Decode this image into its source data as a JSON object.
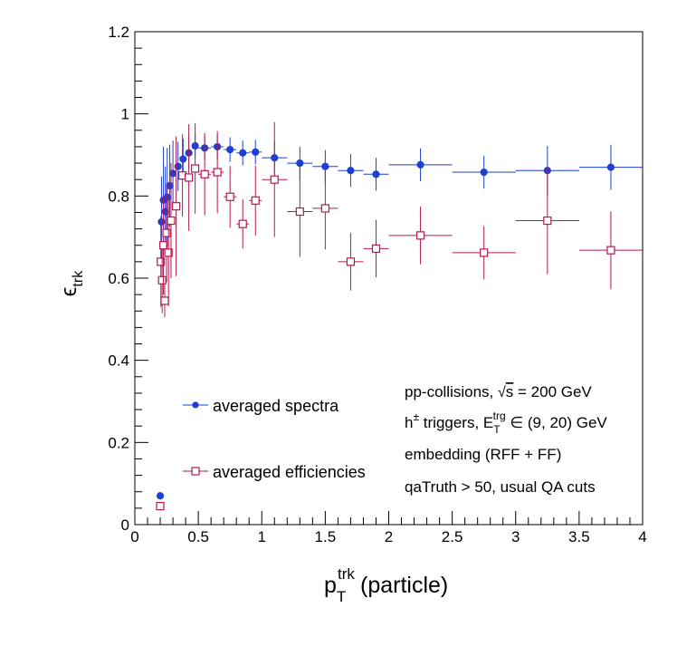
{
  "chart_data": {
    "type": "scatter",
    "xlabel": {
      "main": "p",
      "sub": "T",
      "sup": "trk",
      "rest": "(particle)"
    },
    "ylabel": {
      "main": "ϵ",
      "sub": "trk"
    },
    "xlim": [
      0,
      4
    ],
    "ylim": [
      0,
      1.2
    ],
    "x_ticks": [
      "0",
      "0.5",
      "1",
      "1.5",
      "2",
      "2.5",
      "3",
      "3.5",
      "4"
    ],
    "y_ticks": [
      "0",
      "0.2",
      "0.4",
      "0.6",
      "0.8",
      "1",
      "1.2"
    ],
    "grid": false,
    "legend_position": "left-lower",
    "colors": {
      "spectra": "#1e3fd0",
      "efficiencies": "#b3194f"
    },
    "series": [
      {
        "name": "averaged spectra",
        "marker": "filled-circle",
        "points": [
          {
            "x": 0.2,
            "y": 0.07,
            "xerr": 0.0,
            "yerr": 0.0
          },
          {
            "x": 0.21,
            "y": 0.737,
            "xerr": 0.005,
            "yerr": 0.11
          },
          {
            "x": 0.225,
            "y": 0.79,
            "xerr": 0.005,
            "yerr": 0.13
          },
          {
            "x": 0.24,
            "y": 0.762,
            "xerr": 0.005,
            "yerr": 0.11
          },
          {
            "x": 0.255,
            "y": 0.797,
            "xerr": 0.005,
            "yerr": 0.12
          },
          {
            "x": 0.275,
            "y": 0.825,
            "xerr": 0.01,
            "yerr": 0.1
          },
          {
            "x": 0.3,
            "y": 0.855,
            "xerr": 0.01,
            "yerr": 0.08
          },
          {
            "x": 0.34,
            "y": 0.872,
            "xerr": 0.02,
            "yerr": 0.06
          },
          {
            "x": 0.38,
            "y": 0.89,
            "xerr": 0.02,
            "yerr": 0.05
          },
          {
            "x": 0.425,
            "y": 0.905,
            "xerr": 0.025,
            "yerr": 0.04
          },
          {
            "x": 0.475,
            "y": 0.922,
            "xerr": 0.025,
            "yerr": 0.03
          },
          {
            "x": 0.55,
            "y": 0.917,
            "xerr": 0.05,
            "yerr": 0.03
          },
          {
            "x": 0.65,
            "y": 0.92,
            "xerr": 0.05,
            "yerr": 0.03
          },
          {
            "x": 0.75,
            "y": 0.913,
            "xerr": 0.05,
            "yerr": 0.03
          },
          {
            "x": 0.85,
            "y": 0.905,
            "xerr": 0.05,
            "yerr": 0.03
          },
          {
            "x": 0.95,
            "y": 0.907,
            "xerr": 0.05,
            "yerr": 0.03
          },
          {
            "x": 1.1,
            "y": 0.893,
            "xerr": 0.1,
            "yerr": 0.04
          },
          {
            "x": 1.3,
            "y": 0.88,
            "xerr": 0.1,
            "yerr": 0.04
          },
          {
            "x": 1.5,
            "y": 0.872,
            "xerr": 0.1,
            "yerr": 0.04
          },
          {
            "x": 1.7,
            "y": 0.862,
            "xerr": 0.1,
            "yerr": 0.04
          },
          {
            "x": 1.9,
            "y": 0.853,
            "xerr": 0.1,
            "yerr": 0.04
          },
          {
            "x": 2.25,
            "y": 0.876,
            "xerr": 0.25,
            "yerr": 0.04
          },
          {
            "x": 2.75,
            "y": 0.858,
            "xerr": 0.25,
            "yerr": 0.04
          },
          {
            "x": 3.25,
            "y": 0.862,
            "xerr": 0.25,
            "yerr": 0.06
          },
          {
            "x": 3.75,
            "y": 0.87,
            "xerr": 0.25,
            "yerr": 0.055
          }
        ]
      },
      {
        "name": "averaged efficiencies",
        "marker": "open-square",
        "points": [
          {
            "x": 0.2,
            "y": 0.045,
            "xerr": 0.0,
            "yerr": 0.0
          },
          {
            "x": 0.205,
            "y": 0.64,
            "xerr": 0.005,
            "yerr": 0.11
          },
          {
            "x": 0.215,
            "y": 0.595,
            "xerr": 0.005,
            "yerr": 0.08
          },
          {
            "x": 0.225,
            "y": 0.68,
            "xerr": 0.005,
            "yerr": 0.12
          },
          {
            "x": 0.235,
            "y": 0.545,
            "xerr": 0.005,
            "yerr": 0.04
          },
          {
            "x": 0.25,
            "y": 0.71,
            "xerr": 0.005,
            "yerr": 0.12
          },
          {
            "x": 0.265,
            "y": 0.662,
            "xerr": 0.005,
            "yerr": 0.13
          },
          {
            "x": 0.285,
            "y": 0.74,
            "xerr": 0.01,
            "yerr": 0.14
          },
          {
            "x": 0.325,
            "y": 0.775,
            "xerr": 0.02,
            "yerr": 0.17
          },
          {
            "x": 0.375,
            "y": 0.85,
            "xerr": 0.02,
            "yerr": 0.1
          },
          {
            "x": 0.425,
            "y": 0.845,
            "xerr": 0.025,
            "yerr": 0.13
          },
          {
            "x": 0.475,
            "y": 0.867,
            "xerr": 0.025,
            "yerr": 0.11
          },
          {
            "x": 0.55,
            "y": 0.853,
            "xerr": 0.05,
            "yerr": 0.1
          },
          {
            "x": 0.65,
            "y": 0.858,
            "xerr": 0.05,
            "yerr": 0.1
          },
          {
            "x": 0.75,
            "y": 0.798,
            "xerr": 0.05,
            "yerr": 0.075
          },
          {
            "x": 0.85,
            "y": 0.732,
            "xerr": 0.05,
            "yerr": 0.06
          },
          {
            "x": 0.95,
            "y": 0.789,
            "xerr": 0.05,
            "yerr": 0.085
          },
          {
            "x": 1.1,
            "y": 0.84,
            "xerr": 0.1,
            "yerr": 0.14
          },
          {
            "x": 1.3,
            "y": 0.762,
            "xerr": 0.1,
            "yerr": 0.11
          },
          {
            "x": 1.5,
            "y": 0.77,
            "xerr": 0.1,
            "yerr": 0.1
          },
          {
            "x": 1.7,
            "y": 0.64,
            "xerr": 0.1,
            "yerr": 0.07
          },
          {
            "x": 1.9,
            "y": 0.672,
            "xerr": 0.1,
            "yerr": 0.07
          },
          {
            "x": 2.25,
            "y": 0.704,
            "xerr": 0.25,
            "yerr": 0.07
          },
          {
            "x": 2.75,
            "y": 0.662,
            "xerr": 0.25,
            "yerr": 0.065
          },
          {
            "x": 3.25,
            "y": 0.74,
            "xerr": 0.25,
            "yerr": 0.13
          },
          {
            "x": 3.75,
            "y": 0.668,
            "xerr": 0.25,
            "yerr": 0.095
          }
        ]
      }
    ],
    "annotations": [
      {
        "id": "anno-collisions",
        "parts": [
          {
            "t": "pp-collisions, "
          },
          {
            "t": "√",
            "style": "sqrt"
          },
          {
            "t": "s",
            "style": "over"
          },
          {
            "t": " = 200 GeV"
          }
        ]
      },
      {
        "id": "anno-triggers",
        "parts": [
          {
            "t": "h"
          },
          {
            "t": "±",
            "style": "sup"
          },
          {
            "t": " triggers, E"
          },
          {
            "t": "T",
            "style": "sub"
          },
          {
            "t": "trg",
            "style": "sup-over"
          },
          {
            "t": " ∈ (9, 20) GeV"
          }
        ]
      },
      {
        "id": "anno-embedding",
        "parts": [
          {
            "t": "embedding (RFF + FF)"
          }
        ]
      },
      {
        "id": "anno-cuts",
        "parts": [
          {
            "t": "qaTruth > 50, usual QA cuts"
          }
        ]
      }
    ]
  }
}
